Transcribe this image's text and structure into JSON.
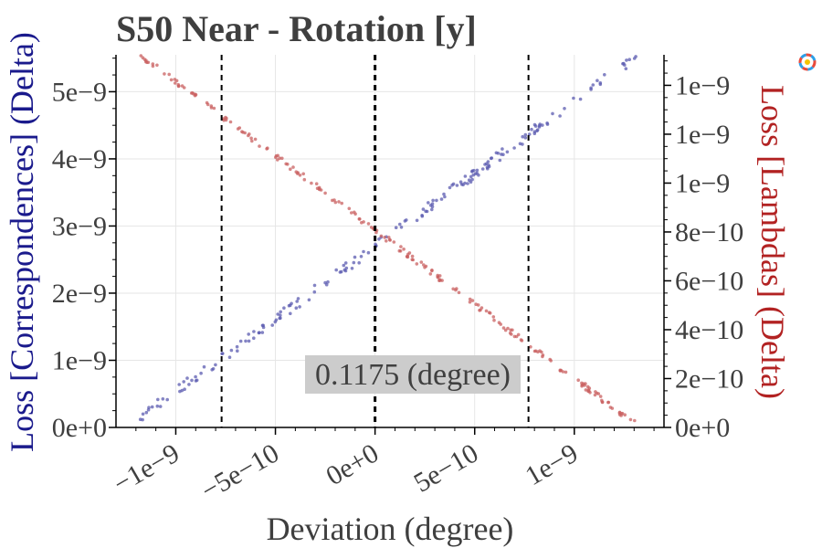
{
  "chart_data": {
    "type": "scatter",
    "title": "S50 Near - Rotation [y]",
    "xlabel": "Deviation (degree)",
    "ylabel_left": "Loss [Correspondences] (Delta)",
    "ylabel_right": "Loss [Lambdas] (Delta)",
    "xlim": [
      -1.3e-09,
      1.45e-09
    ],
    "ylim_left": [
      0,
      5.55e-09
    ],
    "ylim_right": [
      0,
      1.525e-09
    ],
    "grid": true,
    "x_ticks": [
      {
        "value": -1e-09,
        "label": "−1e−9"
      },
      {
        "value": -5e-10,
        "label": "−5e−10"
      },
      {
        "value": 0,
        "label": "0e+0"
      },
      {
        "value": 5e-10,
        "label": "5e−10"
      },
      {
        "value": 1e-09,
        "label": "1e−9"
      }
    ],
    "y_left_ticks": [
      {
        "value": 0,
        "label": "0e+0"
      },
      {
        "value": 1e-09,
        "label": "1e−9"
      },
      {
        "value": 2e-09,
        "label": "2e−9"
      },
      {
        "value": 3e-09,
        "label": "3e−9"
      },
      {
        "value": 4e-09,
        "label": "4e−9"
      },
      {
        "value": 5e-09,
        "label": "5e−9"
      }
    ],
    "y_right_ticks": [
      {
        "value": 0,
        "label": "0e+0"
      },
      {
        "value": 2e-10,
        "label": "2e−10"
      },
      {
        "value": 4e-10,
        "label": "4e−10"
      },
      {
        "value": 6e-10,
        "label": "6e−10"
      },
      {
        "value": 8e-10,
        "label": "8e−10"
      },
      {
        "value": 1e-09,
        "label": "1e−9"
      },
      {
        "value": 1.2e-09,
        "label": "1e−9"
      },
      {
        "value": 1.4e-09,
        "label": "1e−9"
      }
    ],
    "vlines": [
      {
        "x": -7.7e-10,
        "style": "dashed"
      },
      {
        "x": 0,
        "style": "dashed-bold"
      },
      {
        "x": 7.7e-10,
        "style": "dashed"
      }
    ],
    "annotation": {
      "text": "0.1175 (degree)",
      "x": 0,
      "y_left": 7.8e-10
    },
    "series": [
      {
        "axis": "left",
        "color": "#5b5bb0",
        "x_range": [
          -1.2e-09,
          1.32e-09
        ],
        "y_at_xmin": 1e-10,
        "y_at_xmax": 5.55e-09,
        "count": 190,
        "noise": 8e-11
      },
      {
        "axis": "right",
        "color": "#c96060",
        "x_range": [
          -1.18e-09,
          1.33e-09
        ],
        "y_at_xmin": 1.525e-09,
        "y_at_xmax": 0,
        "count": 210,
        "noise": 1.2e-11
      }
    ],
    "colors": {
      "title": "#3f3f3f",
      "left_axis": "#1a1a8c",
      "right_axis": "#b22222",
      "grid": "#e6e6e6",
      "annotation_bg": "#cccccc"
    }
  }
}
